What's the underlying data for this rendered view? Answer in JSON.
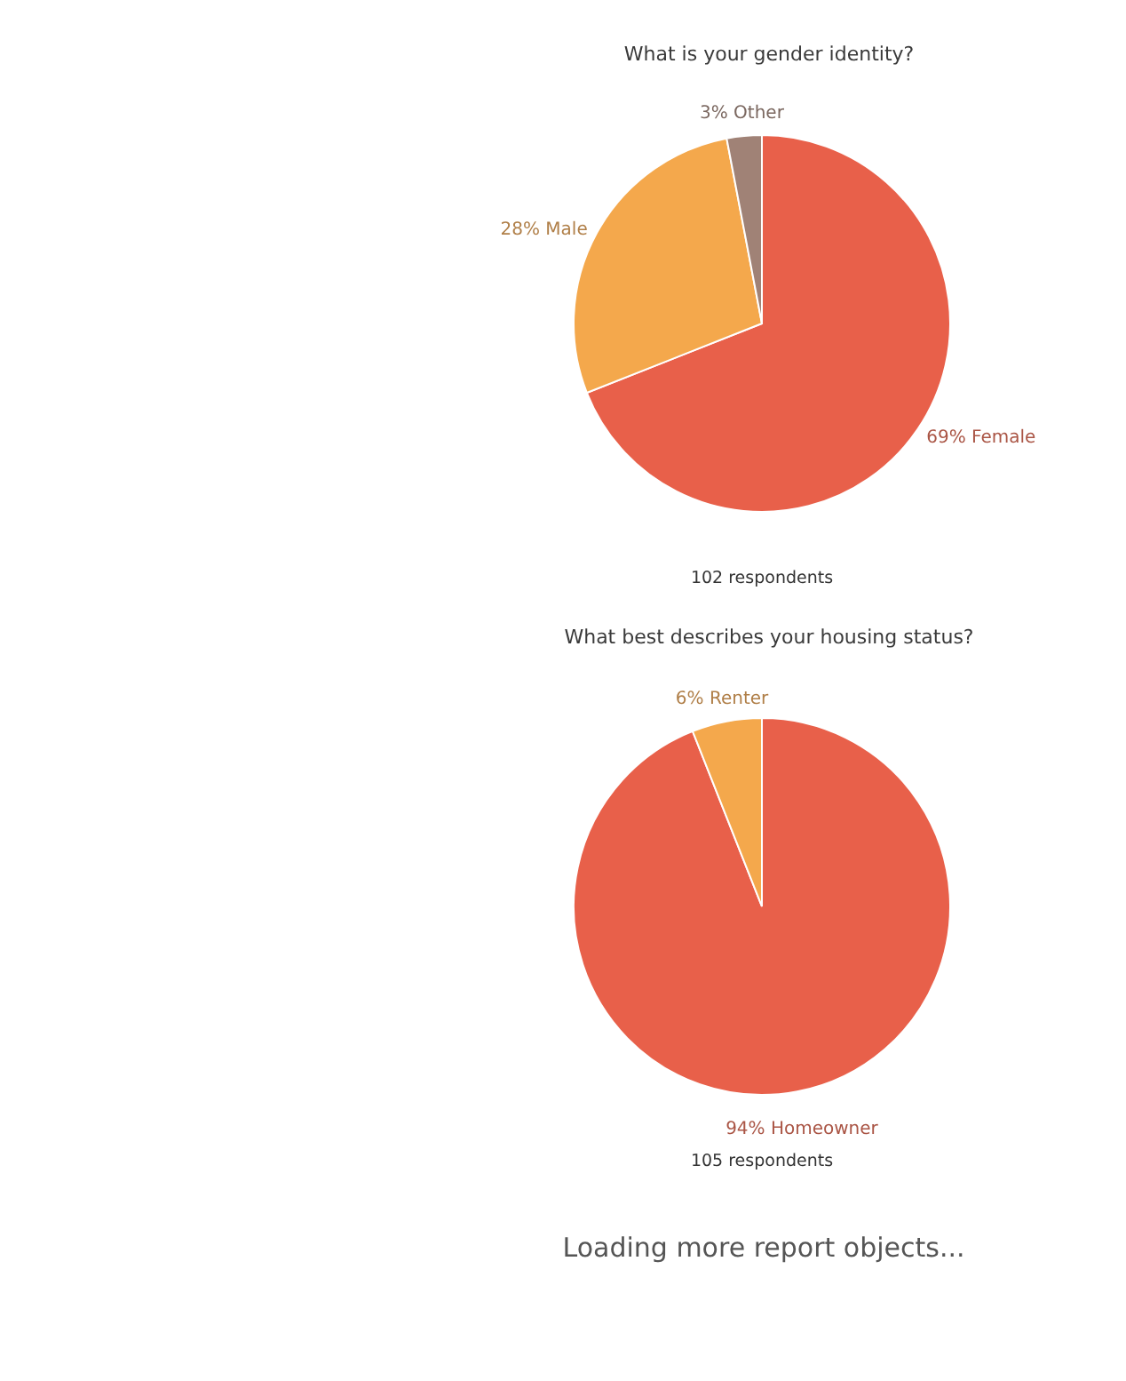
{
  "chart_data": [
    {
      "type": "pie",
      "title": "What is your gender identity?",
      "categories": [
        "Female",
        "Male",
        "Other"
      ],
      "values": [
        69,
        28,
        3
      ],
      "colors": [
        "#e8604a",
        "#f4a84c",
        "#a08276"
      ],
      "value_labels": [
        "69%",
        "28%",
        "3%"
      ],
      "annotations": [
        "102 respondents"
      ]
    },
    {
      "type": "pie",
      "title": "What best describes your housing status?",
      "categories": [
        "Homeowner",
        "Renter"
      ],
      "values": [
        94,
        6
      ],
      "colors": [
        "#e8604a",
        "#f4a84c"
      ],
      "value_labels": [
        "94%",
        "6%"
      ],
      "annotations": [
        "105 respondents",
        "Loading more report objects..."
      ]
    }
  ]
}
